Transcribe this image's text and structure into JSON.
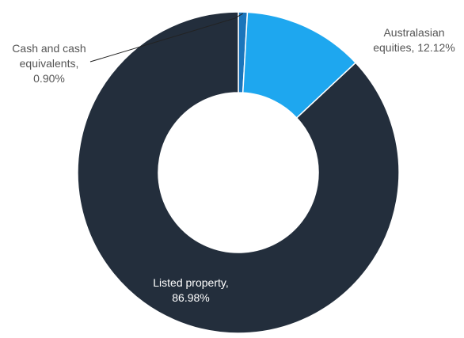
{
  "chart_data": {
    "type": "pie",
    "variant": "donut",
    "slices": [
      {
        "name": "Cash and cash equivalents",
        "value": 0.9,
        "color": "#1b75bb",
        "label_lines": [
          "Cash and cash",
          "equivalents,",
          "0.90%"
        ]
      },
      {
        "name": "Australasian equities",
        "value": 12.12,
        "color": "#1ea7ef",
        "label_lines": [
          "Australasian",
          "equities, 12.12%"
        ]
      },
      {
        "name": "Listed property",
        "value": 86.98,
        "color": "#232e3c",
        "label_lines": [
          "Listed property,",
          "86.98%"
        ]
      }
    ],
    "legend": "none",
    "colors": {
      "background": "#ffffff",
      "dark_label": "#555555",
      "light_label": "#ffffff"
    }
  }
}
